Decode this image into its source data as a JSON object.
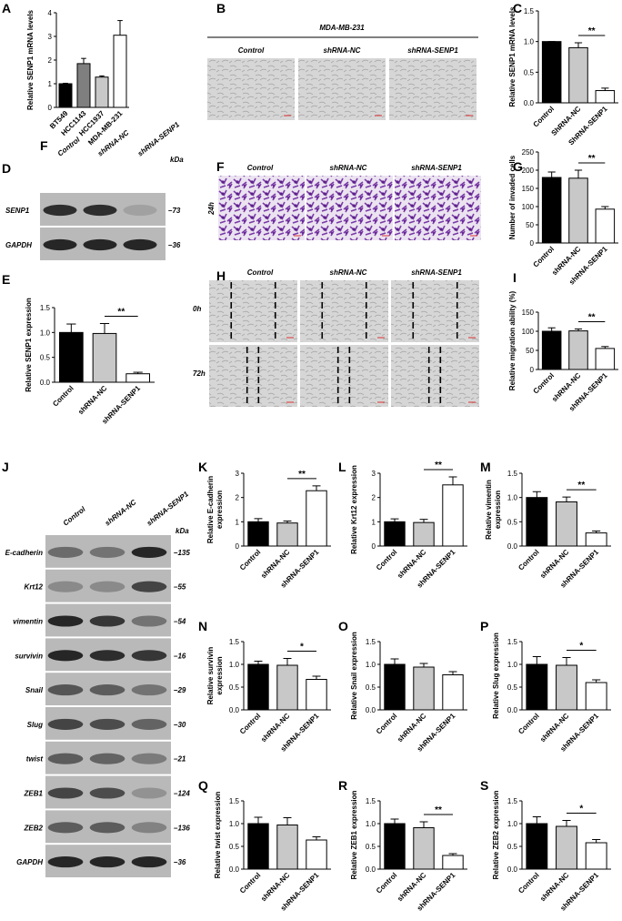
{
  "chart_data": [
    {
      "panel": "A",
      "type": "bar",
      "ylabel": "Relative SENP1 mRNA levels",
      "categories": [
        "BT549",
        "HCC1143",
        "HCC1937",
        "MDA-MB-231"
      ],
      "values": [
        1.0,
        1.85,
        1.28,
        3.05
      ],
      "errors": [
        0.02,
        0.22,
        0.05,
        0.62
      ],
      "colors": [
        "#000000",
        "#7f7f7f",
        "#c8c8c8",
        "#ffffff"
      ],
      "ylim": [
        0,
        4
      ],
      "yticks": [
        0,
        1,
        2,
        3,
        4
      ],
      "significance": []
    },
    {
      "panel": "C",
      "type": "bar",
      "ylabel": "Relative SENP1 mRNA levels",
      "categories": [
        "Control",
        "ShRNA-NC",
        "ShRNA-SENP1"
      ],
      "values": [
        1.0,
        0.9,
        0.2
      ],
      "errors": [
        0.0,
        0.08,
        0.04
      ],
      "colors": [
        "#000000",
        "#c8c8c8",
        "#ffffff"
      ],
      "ylim": [
        0,
        1.5
      ],
      "yticks": [
        {
          "value": 0,
          "label": "0.0"
        },
        {
          "value": 0.5,
          "label": "0.5"
        },
        {
          "value": 1,
          "label": "1.0"
        },
        {
          "value": 1.5,
          "label": "1.5"
        }
      ],
      "significance": [
        {
          "label": "**",
          "between": [
            "ShRNA-NC",
            "ShRNA-SENP1"
          ]
        }
      ]
    },
    {
      "panel": "G",
      "type": "bar",
      "ylabel": "Number of invaded cells",
      "categories": [
        "Control",
        "shRNA-NC",
        "shRNA-SENP1"
      ],
      "values": [
        180,
        178,
        93
      ],
      "errors": [
        15,
        22,
        7
      ],
      "colors": [
        "#000000",
        "#c8c8c8",
        "#ffffff"
      ],
      "ylim": [
        0,
        250
      ],
      "yticks": [
        0,
        50,
        100,
        150,
        200,
        250
      ],
      "significance": [
        {
          "label": "**",
          "between": [
            "shRNA-NC",
            "shRNA-SENP1"
          ]
        }
      ]
    },
    {
      "panel": "E",
      "type": "bar",
      "ylabel": "Relative SENP1 expression",
      "categories": [
        "Control",
        "shRNA-NC",
        "shRNA-SENP1"
      ],
      "values": [
        1.0,
        0.98,
        0.17
      ],
      "errors": [
        0.17,
        0.2,
        0.03
      ],
      "colors": [
        "#000000",
        "#c8c8c8",
        "#ffffff"
      ],
      "ylim": [
        0,
        1.5
      ],
      "yticks": [
        {
          "value": 0,
          "label": "0.0"
        },
        {
          "value": 0.5,
          "label": "0.5"
        },
        {
          "value": 1,
          "label": "1.0"
        },
        {
          "value": 1.5,
          "label": "1.5"
        }
      ],
      "significance": [
        {
          "label": "**",
          "between": [
            "shRNA-NC",
            "shRNA-SENP1"
          ]
        }
      ]
    },
    {
      "panel": "I",
      "type": "bar",
      "ylabel": "Relative migration ability (%)",
      "categories": [
        "Control",
        "shRNA-NC",
        "shRNA-SENP1"
      ],
      "values": [
        100,
        101,
        55
      ],
      "errors": [
        9,
        5,
        5
      ],
      "colors": [
        "#000000",
        "#c8c8c8",
        "#ffffff"
      ],
      "ylim": [
        0,
        150
      ],
      "yticks": [
        0,
        50,
        100,
        150
      ],
      "significance": [
        {
          "label": "**",
          "between": [
            "shRNA-NC",
            "shRNA-SENP1"
          ]
        }
      ]
    },
    {
      "panel": "K",
      "type": "bar",
      "ylabel": [
        "Relative E-cadherin",
        "expression"
      ],
      "categories": [
        "Control",
        "shRNA-NC",
        "shRNA-SENP1"
      ],
      "values": [
        1.0,
        0.95,
        2.28
      ],
      "errors": [
        0.13,
        0.08,
        0.2
      ],
      "colors": [
        "#000000",
        "#c8c8c8",
        "#ffffff"
      ],
      "ylim": [
        0,
        3
      ],
      "yticks": [
        0,
        1,
        2,
        3
      ],
      "significance": [
        {
          "label": "**",
          "between": [
            "shRNA-NC",
            "shRNA-SENP1"
          ]
        }
      ]
    },
    {
      "panel": "L",
      "type": "bar",
      "ylabel": "Relative Krt12 expression",
      "categories": [
        "Control",
        "shRNA-NC",
        "shRNA-SENP1"
      ],
      "values": [
        1.0,
        0.97,
        2.52
      ],
      "errors": [
        0.12,
        0.13,
        0.33
      ],
      "colors": [
        "#000000",
        "#c8c8c8",
        "#ffffff"
      ],
      "ylim": [
        0,
        3
      ],
      "yticks": [
        0,
        1,
        2,
        3
      ],
      "significance": [
        {
          "label": "**",
          "between": [
            "shRNA-NC",
            "shRNA-SENP1"
          ]
        }
      ]
    },
    {
      "panel": "M",
      "type": "bar",
      "ylabel": [
        "Relative vimentin",
        "expression"
      ],
      "categories": [
        "Control",
        "shRNA-NC",
        "shRNA-SENP1"
      ],
      "values": [
        1.0,
        0.91,
        0.27
      ],
      "errors": [
        0.12,
        0.1,
        0.04
      ],
      "colors": [
        "#000000",
        "#c8c8c8",
        "#ffffff"
      ],
      "ylim": [
        0,
        1.5
      ],
      "yticks": [
        {
          "value": 0,
          "label": "0.0"
        },
        {
          "value": 0.5,
          "label": "0.5"
        },
        {
          "value": 1,
          "label": "1.0"
        },
        {
          "value": 1.5,
          "label": "1.5"
        }
      ],
      "significance": [
        {
          "label": "**",
          "between": [
            "shRNA-NC",
            "shRNA-SENP1"
          ]
        }
      ]
    },
    {
      "panel": "N",
      "type": "bar",
      "ylabel": [
        "Relative survivin",
        "expression"
      ],
      "categories": [
        "Control",
        "shRNA-NC",
        "shRNA-SENP1"
      ],
      "values": [
        1.0,
        0.98,
        0.67
      ],
      "errors": [
        0.07,
        0.15,
        0.07
      ],
      "colors": [
        "#000000",
        "#c8c8c8",
        "#ffffff"
      ],
      "ylim": [
        0,
        1.5
      ],
      "yticks": [
        {
          "value": 0,
          "label": "0.0"
        },
        {
          "value": 0.5,
          "label": "0.5"
        },
        {
          "value": 1,
          "label": "1.0"
        },
        {
          "value": 1.5,
          "label": "1.5"
        }
      ],
      "significance": [
        {
          "label": "*",
          "between": [
            "shRNA-NC",
            "shRNA-SENP1"
          ]
        }
      ]
    },
    {
      "panel": "O",
      "type": "bar",
      "ylabel": "Relative Snail expression",
      "categories": [
        "Control",
        "shRNA-NC",
        "shRNA-SENP1"
      ],
      "values": [
        1.0,
        0.94,
        0.77
      ],
      "errors": [
        0.12,
        0.08,
        0.07
      ],
      "colors": [
        "#000000",
        "#c8c8c8",
        "#ffffff"
      ],
      "ylim": [
        0,
        1.5
      ],
      "yticks": [
        {
          "value": 0,
          "label": "0.0"
        },
        {
          "value": 0.5,
          "label": "0.5"
        },
        {
          "value": 1,
          "label": "1.0"
        },
        {
          "value": 1.5,
          "label": "1.5"
        }
      ],
      "significance": []
    },
    {
      "panel": "P",
      "type": "bar",
      "ylabel": "Relative Slug expression",
      "categories": [
        "Control",
        "shRNA-NC",
        "shRNA-SENP1"
      ],
      "values": [
        1.0,
        0.98,
        0.6
      ],
      "errors": [
        0.17,
        0.17,
        0.06
      ],
      "colors": [
        "#000000",
        "#c8c8c8",
        "#ffffff"
      ],
      "ylim": [
        0,
        1.5
      ],
      "yticks": [
        {
          "value": 0,
          "label": "0.0"
        },
        {
          "value": 0.5,
          "label": "0.5"
        },
        {
          "value": 1,
          "label": "1.0"
        },
        {
          "value": 1.5,
          "label": "1.5"
        }
      ],
      "significance": [
        {
          "label": "*",
          "between": [
            "shRNA-NC",
            "shRNA-SENP1"
          ]
        }
      ]
    },
    {
      "panel": "Q",
      "type": "bar",
      "ylabel": "Relative twist expression",
      "categories": [
        "Control",
        "shRNA-NC",
        "shRNA-SENP1"
      ],
      "values": [
        1.0,
        0.97,
        0.64
      ],
      "errors": [
        0.14,
        0.16,
        0.07
      ],
      "colors": [
        "#000000",
        "#c8c8c8",
        "#ffffff"
      ],
      "ylim": [
        0,
        1.5
      ],
      "yticks": [
        {
          "value": 0,
          "label": "0.0"
        },
        {
          "value": 0.5,
          "label": "0.5"
        },
        {
          "value": 1,
          "label": "1.0"
        },
        {
          "value": 1.5,
          "label": "1.5"
        }
      ],
      "significance": []
    },
    {
      "panel": "R",
      "type": "bar",
      "ylabel": "Relative ZEB1 expression",
      "categories": [
        "Control",
        "shRNA-NC",
        "shRNA-SENP1"
      ],
      "values": [
        1.0,
        0.91,
        0.3
      ],
      "errors": [
        0.1,
        0.13,
        0.04
      ],
      "colors": [
        "#000000",
        "#c8c8c8",
        "#ffffff"
      ],
      "ylim": [
        0,
        1.5
      ],
      "yticks": [
        {
          "value": 0,
          "label": "0.0"
        },
        {
          "value": 0.5,
          "label": "0.5"
        },
        {
          "value": 1,
          "label": "1.0"
        },
        {
          "value": 1.5,
          "label": "1.5"
        }
      ],
      "significance": [
        {
          "label": "**",
          "between": [
            "shRNA-NC",
            "shRNA-SENP1"
          ]
        }
      ]
    },
    {
      "panel": "S",
      "type": "bar",
      "ylabel": "Relative ZEB2 expression",
      "categories": [
        "Control",
        "shRNA-NC",
        "shRNA-SENP1"
      ],
      "values": [
        1.0,
        0.94,
        0.58
      ],
      "errors": [
        0.15,
        0.13,
        0.07
      ],
      "colors": [
        "#000000",
        "#c8c8c8",
        "#ffffff"
      ],
      "ylim": [
        0,
        1.5
      ],
      "yticks": [
        {
          "value": 0,
          "label": "0.0"
        },
        {
          "value": 0.5,
          "label": "0.5"
        },
        {
          "value": 1,
          "label": "1.0"
        },
        {
          "value": 1.5,
          "label": "1.5"
        }
      ],
      "significance": [
        {
          "label": "*",
          "between": [
            "shRNA-NC",
            "shRNA-SENP1"
          ]
        }
      ]
    }
  ],
  "microscopy": {
    "panel": "B",
    "title": "MDA-MB-231",
    "columns": [
      "Control",
      "shRNA-NC",
      "shRNA-SENP1"
    ]
  },
  "transwell": {
    "panel": "F",
    "columns": [
      "Control",
      "shRNA-NC",
      "shRNA-SENP1"
    ],
    "rows": [
      "24h"
    ]
  },
  "wound": {
    "panel": "H",
    "columns": [
      "Control",
      "shRNA-NC",
      "shRNA-SENP1"
    ],
    "rows": [
      "0h",
      "72h"
    ]
  },
  "blot_d": {
    "panel": "D",
    "lanes": [
      "Control",
      "shRNA-NC",
      "shRNA-SENP1"
    ],
    "unit": "kDa",
    "rows": [
      {
        "name": "SENP1",
        "kda": "–73"
      },
      {
        "name": "GAPDH",
        "kda": "–36"
      }
    ]
  },
  "blot_j": {
    "panel": "J",
    "lanes": [
      "Control",
      "shRNA-NC",
      "shRNA-SENP1"
    ],
    "unit": "kDa",
    "rows": [
      {
        "name": "E-cadherin",
        "kda": "–135"
      },
      {
        "name": "Krt12",
        "kda": "–55"
      },
      {
        "name": "vimentin",
        "kda": "–54"
      },
      {
        "name": "survivin",
        "kda": "–16"
      },
      {
        "name": "Snail",
        "kda": "–29"
      },
      {
        "name": "Slug",
        "kda": "–30"
      },
      {
        "name": "twist",
        "kda": "–21"
      },
      {
        "name": "ZEB1",
        "kda": "–124"
      },
      {
        "name": "ZEB2",
        "kda": "–136"
      },
      {
        "name": "GAPDH",
        "kda": "–36"
      }
    ]
  },
  "extra_labels": [
    "F"
  ]
}
